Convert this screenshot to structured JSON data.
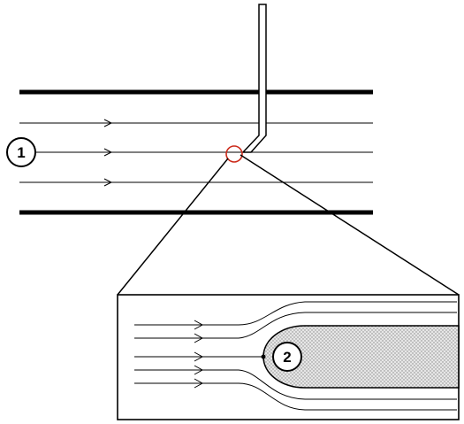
{
  "labels": {
    "marker_1": "1",
    "marker_2": "2"
  },
  "colors": {
    "stroke": "#000000",
    "highlight_circle": "#cc2a1a",
    "body_fill": "#d9d9d9"
  }
}
